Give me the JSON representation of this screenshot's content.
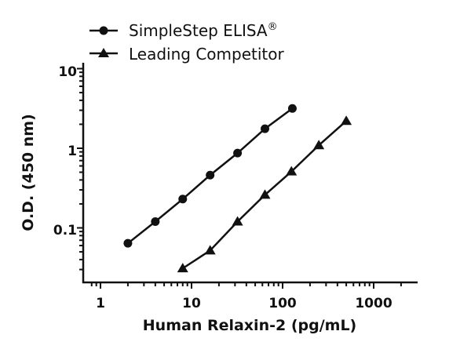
{
  "chart_data": {
    "type": "line",
    "title": "",
    "xlabel": "Human Relaxin-2 (pg/mL)",
    "ylabel": "O.D. (450 nm)",
    "xscale": "log",
    "yscale": "log",
    "xlim": [
      0.8,
      3000
    ],
    "ylim": [
      0.02,
      10
    ],
    "x_ticks": [
      "1",
      "10",
      "100",
      "1000"
    ],
    "y_ticks": [
      "0.1",
      "1",
      "10"
    ],
    "grid": false,
    "legend_position": "top-left",
    "series": [
      {
        "name": "SimpleStep ELISA®",
        "marker": "circle",
        "x": [
          2,
          4,
          8,
          16,
          32,
          64,
          128
        ],
        "values": [
          0.064,
          0.12,
          0.23,
          0.46,
          0.87,
          1.76,
          3.16
        ]
      },
      {
        "name": "Leading Competitor",
        "marker": "triangle",
        "x": [
          8,
          16,
          32,
          64,
          125,
          250,
          500
        ],
        "values": [
          0.031,
          0.052,
          0.12,
          0.26,
          0.51,
          1.09,
          2.2
        ]
      }
    ]
  },
  "legend": {
    "items": [
      {
        "label": "SimpleStep ELISA",
        "superscript": "®"
      },
      {
        "label": "Leading Competitor"
      }
    ]
  },
  "axes": {
    "x_title": "Human Relaxin-2 (pg/mL)",
    "y_title": "O.D. (450 nm)",
    "x_tick_labels": [
      "1",
      "10",
      "100",
      "1000"
    ],
    "y_tick_labels": [
      "0.1",
      "1",
      "10"
    ]
  },
  "colors": {
    "ink": "#111111",
    "background": "#ffffff"
  }
}
